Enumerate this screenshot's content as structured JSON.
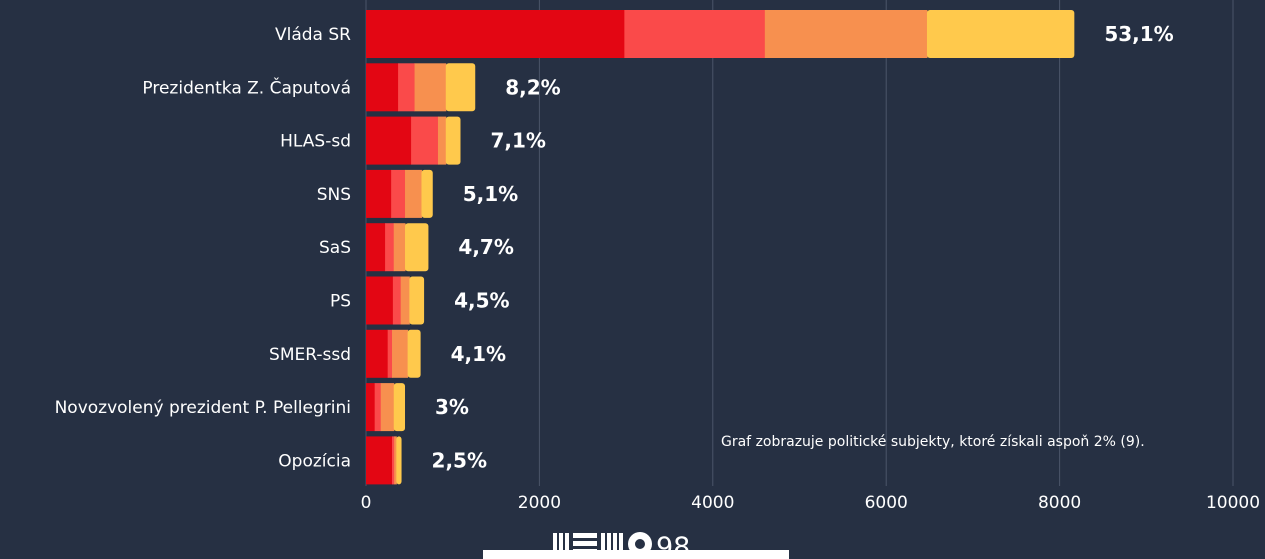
{
  "chart_data": {
    "type": "bar",
    "orientation": "horizontal",
    "stacked": true,
    "categories": [
      "Vláda SR",
      "Prezidentka Z. Čaputová",
      "HLAS-sd",
      "SNS",
      "SaS",
      "PS",
      "SMER-ssd",
      "Novozvolený prezident P. Pellegrini",
      "Opozícia"
    ],
    "percent_labels": [
      "53,1%",
      "8,2%",
      "7,1%",
      "5,1%",
      "4,7%",
      "4,5%",
      "4,1%",
      "3%",
      "2,5%"
    ],
    "series_colors": [
      "#e30613",
      "#fa4a4a",
      "#f7904f",
      "#ffc94c"
    ],
    "series": [
      {
        "values": [
          2980,
          370,
          520,
          290,
          220,
          310,
          250,
          100,
          300
        ]
      },
      {
        "values": [
          1620,
          190,
          310,
          160,
          100,
          90,
          50,
          70,
          25
        ]
      },
      {
        "values": [
          1870,
          360,
          90,
          190,
          130,
          100,
          180,
          150,
          25
        ]
      },
      {
        "values": [
          1700,
          340,
          170,
          130,
          270,
          170,
          150,
          130,
          60
        ]
      }
    ],
    "xlim": [
      0,
      10000
    ],
    "xticks": [
      "0",
      "2000",
      "4000",
      "6000",
      "8000",
      "10000"
    ],
    "grid": true,
    "annotation": "Graf zobrazuje politické subjekty, ktoré získali aspoň 2% (9)."
  },
  "logo": {
    "text": "98"
  }
}
